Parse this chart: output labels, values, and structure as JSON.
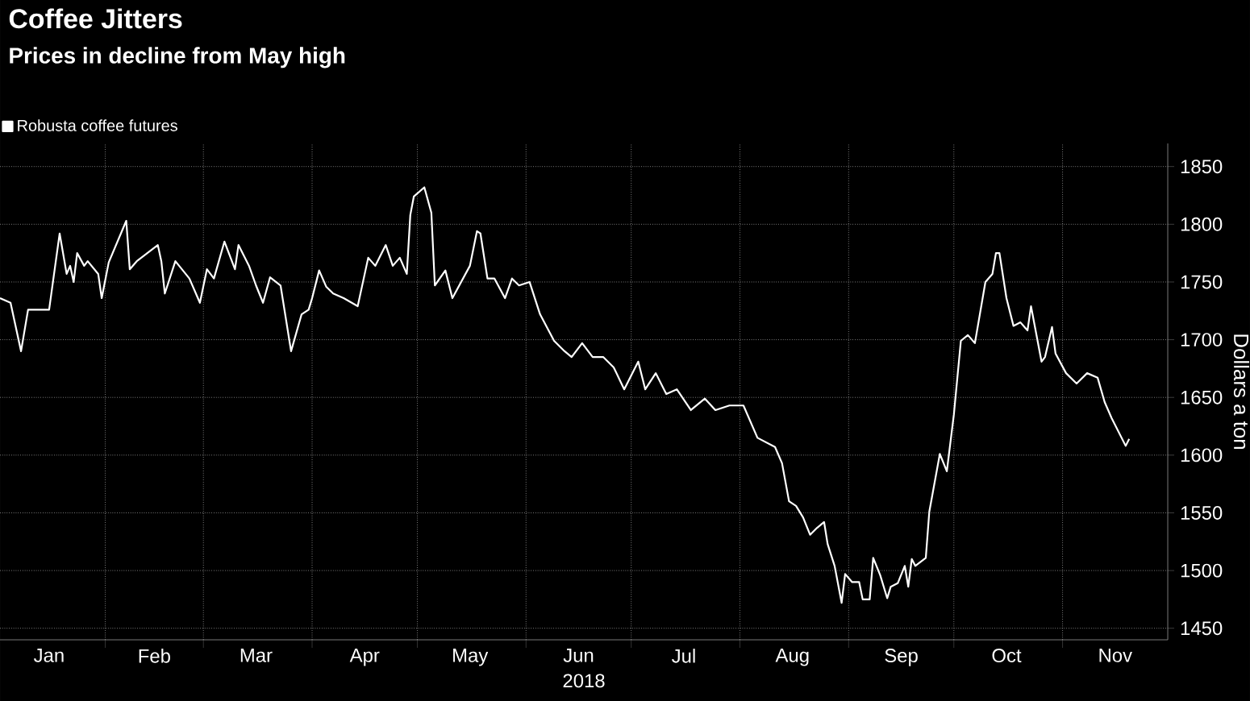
{
  "chart_data": {
    "type": "line",
    "title": "Coffee Jitters",
    "subtitle": "Prices in decline from May high",
    "xlabel": "2018",
    "ylabel": "Dollars a ton",
    "x": [
      "2018-01-02",
      "2018-01-05",
      "2018-01-08",
      "2018-01-10",
      "2018-01-16",
      "2018-01-19",
      "2018-01-21",
      "2018-01-22",
      "2018-01-23",
      "2018-01-24",
      "2018-01-26",
      "2018-01-27",
      "2018-01-30",
      "2018-01-31",
      "2018-02-02",
      "2018-02-07",
      "2018-02-08",
      "2018-02-10",
      "2018-02-16",
      "2018-02-17",
      "2018-02-18",
      "2018-02-21",
      "2018-02-25",
      "2018-02-28",
      "2018-03-02",
      "2018-03-04",
      "2018-03-07",
      "2018-03-10",
      "2018-03-11",
      "2018-03-14",
      "2018-03-16",
      "2018-03-18",
      "2018-03-20",
      "2018-03-23",
      "2018-03-26",
      "2018-03-29",
      "2018-03-31",
      "2018-04-01",
      "2018-04-03",
      "2018-04-05",
      "2018-04-07",
      "2018-04-10",
      "2018-04-14",
      "2018-04-17",
      "2018-04-19",
      "2018-04-22",
      "2018-04-24",
      "2018-04-26",
      "2018-04-28",
      "2018-04-29",
      "2018-04-30",
      "2018-05-03",
      "2018-05-05",
      "2018-05-06",
      "2018-05-09",
      "2018-05-11",
      "2018-05-16",
      "2018-05-18",
      "2018-05-19",
      "2018-05-21",
      "2018-05-23",
      "2018-05-26",
      "2018-05-28",
      "2018-05-30",
      "2018-06-02",
      "2018-06-05",
      "2018-06-09",
      "2018-06-12",
      "2018-06-14",
      "2018-06-17",
      "2018-06-20",
      "2018-06-23",
      "2018-06-26",
      "2018-06-29",
      "2018-07-03",
      "2018-07-05",
      "2018-07-08",
      "2018-07-11",
      "2018-07-14",
      "2018-07-18",
      "2018-07-22",
      "2018-07-25",
      "2018-07-29",
      "2018-08-02",
      "2018-08-06",
      "2018-08-11",
      "2018-08-13",
      "2018-08-15",
      "2018-08-17",
      "2018-08-19",
      "2018-08-21",
      "2018-08-23",
      "2018-08-25",
      "2018-08-26",
      "2018-08-28",
      "2018-08-30",
      "2018-08-31",
      "2018-09-02",
      "2018-09-04",
      "2018-09-05",
      "2018-09-07",
      "2018-09-08",
      "2018-09-10",
      "2018-09-12",
      "2018-09-13",
      "2018-09-15",
      "2018-09-17",
      "2018-09-18",
      "2018-09-19",
      "2018-09-20",
      "2018-09-23",
      "2018-09-24",
      "2018-09-27",
      "2018-09-29",
      "2018-10-01",
      "2018-10-03",
      "2018-10-05",
      "2018-10-07",
      "2018-10-10",
      "2018-10-12",
      "2018-10-13",
      "2018-10-14",
      "2018-10-16",
      "2018-10-18",
      "2018-10-20",
      "2018-10-22",
      "2018-10-23",
      "2018-10-26",
      "2018-10-27",
      "2018-10-29",
      "2018-10-30",
      "2018-11-02",
      "2018-11-05",
      "2018-11-08",
      "2018-11-11",
      "2018-11-13",
      "2018-11-15",
      "2018-11-19",
      "2018-11-20"
    ],
    "series": [
      {
        "name": "Robusta coffee futures",
        "color": "#ffffff",
        "values": [
          1736,
          1732,
          1690,
          1726,
          1726,
          1792,
          1757,
          1764,
          1750,
          1775,
          1764,
          1768,
          1757,
          1736,
          1767,
          1803,
          1761,
          1768,
          1782,
          1768,
          1740,
          1768,
          1753,
          1732,
          1761,
          1753,
          1785,
          1761,
          1782,
          1764,
          1747,
          1732,
          1754,
          1747,
          1690,
          1722,
          1726,
          1736,
          1760,
          1746,
          1740,
          1736,
          1729,
          1771,
          1764,
          1782,
          1764,
          1771,
          1757,
          1808,
          1824,
          1832,
          1810,
          1747,
          1760,
          1736,
          1764,
          1794,
          1792,
          1753,
          1753,
          1736,
          1753,
          1747,
          1750,
          1722,
          1699,
          1690,
          1685,
          1697,
          1685,
          1685,
          1676,
          1657,
          1681,
          1657,
          1671,
          1653,
          1657,
          1639,
          1649,
          1639,
          1643,
          1643,
          1615,
          1607,
          1593,
          1560,
          1556,
          1546,
          1531,
          1537,
          1542,
          1523,
          1504,
          1472,
          1497,
          1490,
          1490,
          1475,
          1475,
          1511,
          1496,
          1476,
          1486,
          1489,
          1504,
          1486,
          1510,
          1504,
          1511,
          1551,
          1601,
          1586,
          1635,
          1699,
          1704,
          1697,
          1750,
          1757,
          1775,
          1775,
          1736,
          1712,
          1715,
          1708,
          1729,
          1681,
          1685,
          1711,
          1688,
          1671,
          1662,
          1671,
          1667,
          1646,
          1632,
          1608,
          1614
        ]
      }
    ],
    "xlim": [
      "2018-01-02",
      "2018-12-01"
    ],
    "xticks": [
      {
        "value": "2018-01-16",
        "label": "Jan"
      },
      {
        "value": "2018-02-01",
        "label": null
      },
      {
        "value": "2018-02-15",
        "label": "Feb"
      },
      {
        "value": "2018-03-01",
        "label": null
      },
      {
        "value": "2018-03-16",
        "label": "Mar"
      },
      {
        "value": "2018-04-01",
        "label": null
      },
      {
        "value": "2018-04-16",
        "label": "Apr"
      },
      {
        "value": "2018-05-01",
        "label": null
      },
      {
        "value": "2018-05-16",
        "label": "May"
      },
      {
        "value": "2018-06-01",
        "label": null
      },
      {
        "value": "2018-06-16",
        "label": "Jun"
      },
      {
        "value": "2018-07-01",
        "label": null
      },
      {
        "value": "2018-07-16",
        "label": "Jul"
      },
      {
        "value": "2018-08-01",
        "label": null
      },
      {
        "value": "2018-08-16",
        "label": "Aug"
      },
      {
        "value": "2018-09-01",
        "label": null
      },
      {
        "value": "2018-09-16",
        "label": "Sep"
      },
      {
        "value": "2018-10-01",
        "label": null
      },
      {
        "value": "2018-10-16",
        "label": "Oct"
      },
      {
        "value": "2018-11-01",
        "label": null
      },
      {
        "value": "2018-11-16",
        "label": "Nov"
      }
    ],
    "ylim": [
      1440,
      1870
    ],
    "yticks": [
      1450,
      1500,
      1550,
      1600,
      1650,
      1700,
      1750,
      1800,
      1850
    ],
    "grid": true,
    "legend": "top left"
  }
}
